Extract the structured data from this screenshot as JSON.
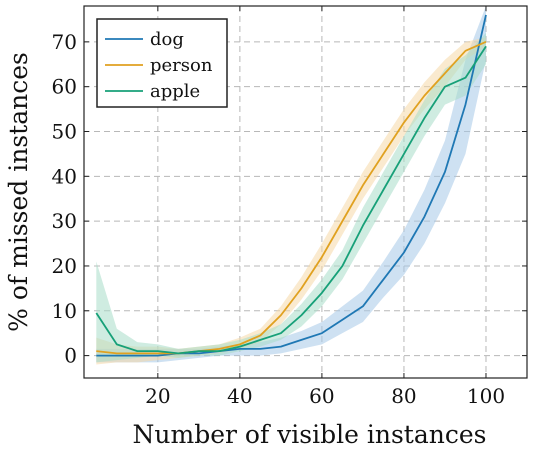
{
  "chart_data": {
    "type": "line",
    "xlabel": "Number of visible instances",
    "ylabel": "% of missed instances",
    "xlim": [
      2,
      110
    ],
    "ylim": [
      -5,
      78
    ],
    "xticks": [
      20,
      40,
      60,
      80,
      100
    ],
    "yticks": [
      0,
      10,
      20,
      30,
      40,
      50,
      60,
      70
    ],
    "grid": true,
    "legend_position": "top-left",
    "series": [
      {
        "name": "dog",
        "color": "#1f78b4",
        "band_color": "#a6c8e8",
        "x": [
          5,
          10,
          15,
          20,
          25,
          30,
          35,
          40,
          45,
          50,
          55,
          60,
          65,
          70,
          75,
          80,
          85,
          90,
          95,
          100
        ],
        "y": [
          0,
          0,
          0,
          0,
          0.5,
          0.5,
          1,
          1.5,
          1.5,
          2,
          3.5,
          5,
          8,
          11,
          17,
          23,
          31,
          41,
          56,
          76
        ],
        "lower": [
          -1.5,
          -1.5,
          -1.5,
          -1.5,
          -1,
          -0.5,
          0,
          0,
          0,
          0.5,
          1.5,
          2.5,
          5,
          7.5,
          13,
          18,
          25,
          34,
          45,
          66
        ],
        "upper": [
          1.5,
          1.5,
          1.5,
          1.5,
          1.5,
          1.5,
          2,
          2.5,
          3,
          4,
          5.5,
          7.5,
          11,
          14.5,
          21,
          28,
          37,
          48,
          66,
          78
        ]
      },
      {
        "name": "person",
        "color": "#e0a120",
        "band_color": "#f5d9a8",
        "x": [
          5,
          10,
          15,
          20,
          25,
          30,
          35,
          40,
          45,
          50,
          55,
          60,
          65,
          70,
          75,
          80,
          85,
          90,
          95,
          100
        ],
        "y": [
          1,
          0.5,
          0.5,
          0.5,
          0.5,
          1,
          1.5,
          2.5,
          4.5,
          9,
          15,
          22,
          30,
          38,
          45,
          52,
          58,
          63,
          68,
          70
        ],
        "lower": [
          -2,
          -1.5,
          -1.5,
          -1,
          -0.5,
          0,
          0.5,
          1.5,
          3,
          7,
          12.5,
          19,
          27,
          35,
          42,
          49,
          55,
          60,
          66,
          69
        ],
        "upper": [
          4,
          2.5,
          2,
          2,
          1.5,
          2,
          2.5,
          4,
          6,
          11,
          17.5,
          25,
          33,
          41,
          48,
          55,
          61,
          66,
          70,
          71
        ]
      },
      {
        "name": "apple",
        "color": "#17a078",
        "band_color": "#a8dcc8",
        "x": [
          5,
          10,
          15,
          20,
          25,
          30,
          35,
          40,
          45,
          50,
          55,
          60,
          65,
          70,
          75,
          80,
          85,
          90,
          95,
          100
        ],
        "y": [
          9.5,
          2.5,
          1,
          1,
          0.5,
          1,
          1,
          2,
          3.5,
          5,
          9,
          14,
          20,
          29,
          37,
          45,
          53,
          60,
          62,
          69
        ],
        "lower": [
          -1.5,
          -1,
          -0.5,
          0,
          -0.5,
          0,
          0,
          1,
          2,
          3.5,
          6.5,
          11,
          17,
          25,
          33,
          41,
          49,
          56,
          58,
          65
        ],
        "upper": [
          21,
          6,
          3,
          2.5,
          1.5,
          2,
          2.5,
          3.5,
          5,
          7,
          11.5,
          17,
          23.5,
          33,
          41,
          49,
          57,
          64,
          67,
          72
        ]
      }
    ]
  }
}
